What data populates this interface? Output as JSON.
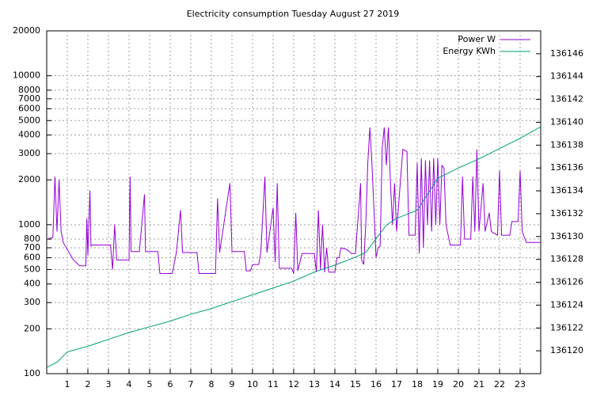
{
  "chart_data": {
    "type": "line",
    "title": "Electricity consumption Tuesday August 27 2019",
    "log_y": true,
    "grid": true,
    "legend": "top-right",
    "xlim": [
      0,
      24
    ],
    "xticks": [
      1,
      2,
      3,
      4,
      5,
      6,
      7,
      8,
      9,
      10,
      11,
      12,
      13,
      14,
      15,
      16,
      17,
      18,
      19,
      20,
      21,
      22,
      23
    ],
    "ylim": [
      100,
      20000
    ],
    "yticks": [
      100,
      200,
      300,
      400,
      500,
      600,
      700,
      800,
      1000,
      2000,
      3000,
      4000,
      5000,
      6000,
      7000,
      8000,
      10000,
      20000
    ],
    "y2lim": [
      136118,
      136148
    ],
    "y2ticks": [
      136120,
      136122,
      136124,
      136126,
      136128,
      136130,
      136132,
      136134,
      136136,
      136138,
      136140,
      136142,
      136144,
      136146
    ],
    "series": [
      {
        "name": "Power W",
        "color": "#9400d3",
        "x": [
          0,
          0.3,
          0.4,
          0.5,
          0.6,
          0.7,
          0.8,
          1.3,
          1.6,
          1.9,
          1.95,
          2.0,
          2.1,
          2.15,
          2.2,
          3.1,
          3.2,
          3.3,
          3.4,
          4.0,
          4.05,
          4.1,
          4.5,
          4.75,
          4.8,
          5.4,
          5.5,
          6.1,
          6.3,
          6.5,
          6.6,
          7.3,
          7.4,
          8.2,
          8.3,
          8.4,
          8.9,
          9.0,
          9.6,
          9.7,
          9.9,
          10.0,
          10.3,
          10.4,
          10.6,
          10.7,
          11.0,
          11.1,
          11.2,
          11.3,
          11.9,
          12.0,
          12.1,
          12.2,
          12.4,
          13.0,
          13.1,
          13.2,
          13.3,
          13.4,
          13.5,
          13.6,
          13.7,
          14.0,
          14.1,
          14.2,
          14.3,
          14.6,
          14.8,
          15.0,
          15.25,
          15.3,
          15.4,
          15.5,
          15.6,
          15.7,
          15.8,
          16.0,
          16.1,
          16.2,
          16.3,
          16.4,
          16.5,
          16.6,
          16.7,
          16.8,
          16.9,
          17.0,
          17.3,
          17.5,
          17.6,
          17.9,
          18.0,
          18.1,
          18.2,
          18.3,
          18.4,
          18.5,
          18.6,
          18.7,
          18.8,
          18.9,
          19.0,
          19.1,
          19.2,
          19.3,
          19.4,
          19.6,
          20.1,
          20.2,
          20.3,
          20.6,
          20.7,
          20.8,
          20.9,
          21.0,
          21.2,
          21.3,
          21.5,
          21.6,
          21.9,
          22.0,
          22.1,
          22.5,
          22.6,
          22.9,
          23.0,
          23.1,
          23.3,
          24
        ],
        "values": [
          800,
          820,
          2100,
          900,
          2000,
          900,
          760,
          580,
          530,
          530,
          1100,
          620,
          1700,
          720,
          730,
          730,
          500,
          1000,
          580,
          580,
          2100,
          660,
          660,
          1600,
          660,
          660,
          470,
          470,
          650,
          1250,
          650,
          650,
          470,
          470,
          1500,
          650,
          1900,
          660,
          660,
          490,
          490,
          540,
          540,
          650,
          2100,
          650,
          1300,
          560,
          1900,
          510,
          510,
          470,
          1200,
          490,
          640,
          640,
          480,
          1250,
          500,
          1000,
          480,
          700,
          480,
          480,
          600,
          600,
          700,
          680,
          640,
          640,
          1900,
          580,
          540,
          1000,
          2600,
          4500,
          2600,
          600,
          700,
          720,
          3300,
          4500,
          2500,
          4500,
          1900,
          1000,
          1900,
          900,
          3200,
          3100,
          850,
          850,
          2600,
          640,
          2800,
          700,
          2700,
          1000,
          2700,
          900,
          2800,
          1000,
          2800,
          1000,
          2500,
          2400,
          1000,
          730,
          730,
          2100,
          800,
          800,
          2100,
          900,
          3200,
          900,
          1900,
          900,
          1200,
          900,
          850,
          2300,
          850,
          850,
          1050,
          1050,
          2300,
          900,
          760,
          760
        ]
      },
      {
        "name": "Energy KWh",
        "color": "#009e73",
        "axis": "y2",
        "x": [
          0,
          0.5,
          1,
          2,
          3,
          4,
          5,
          6,
          7,
          8,
          9,
          10,
          11,
          12,
          13,
          14,
          15,
          15.5,
          16,
          16.5,
          17,
          18,
          19,
          20,
          21,
          22,
          23,
          24
        ],
        "values": [
          136118.55,
          136119,
          136119.9,
          136120.4,
          136121,
          136121.6,
          136122.1,
          136122.6,
          136123.2,
          136123.7,
          136124.3,
          136124.9,
          136125.5,
          136126.1,
          136126.9,
          136127.5,
          136128.2,
          136128.6,
          136129.8,
          136131,
          136131.6,
          136132.3,
          136135.1,
          136136,
          136136.8,
          136137.7,
          136138.6,
          136139.6
        ]
      }
    ]
  }
}
